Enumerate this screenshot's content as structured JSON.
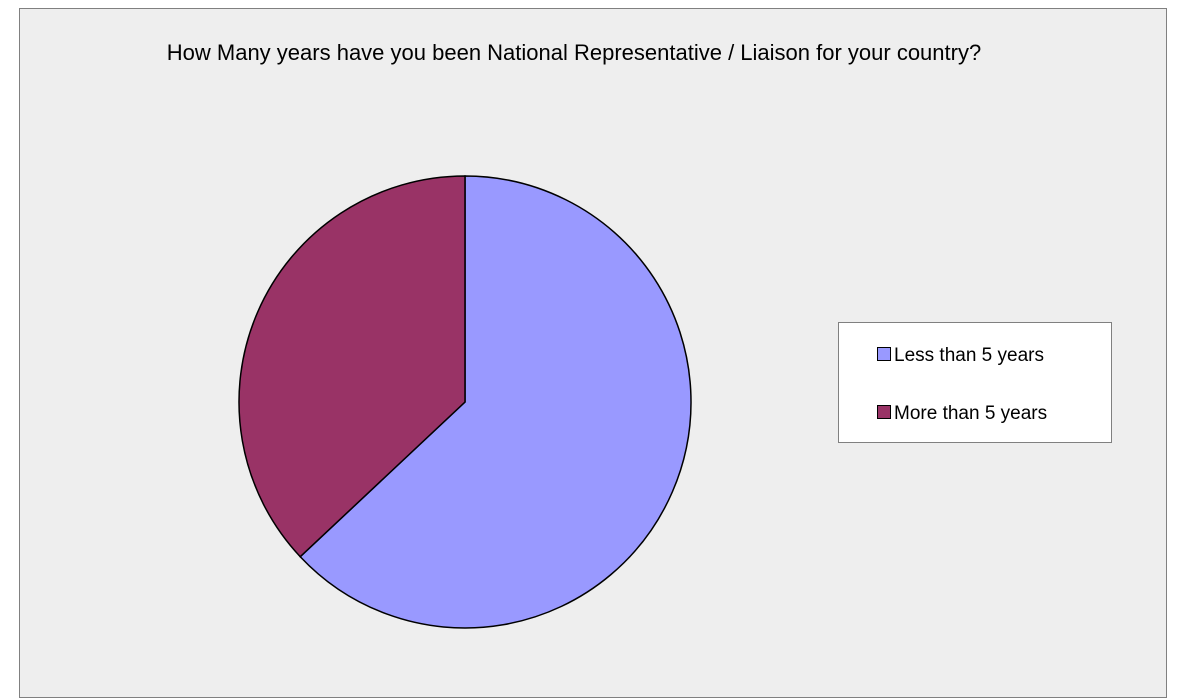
{
  "chart_data": {
    "type": "pie",
    "title": "How Many years have you been National Representative / Liaison for your country?",
    "categories": [
      "Less than 5 years",
      "More than 5 years"
    ],
    "values": [
      63,
      37
    ],
    "colors": [
      "#9999ff",
      "#993366"
    ],
    "legend_position": "right"
  }
}
